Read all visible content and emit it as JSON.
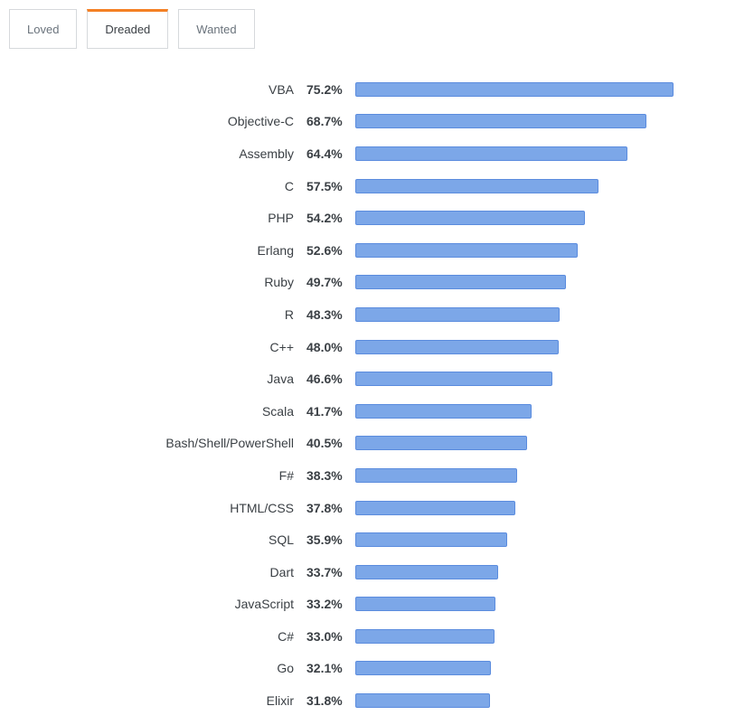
{
  "tabs": [
    {
      "label": "Loved",
      "active": false
    },
    {
      "label": "Dreaded",
      "active": true
    },
    {
      "label": "Wanted",
      "active": false
    }
  ],
  "accent_color": "#f48024",
  "bar_fill_color": "#7ca7e8",
  "bar_border_color": "#5b8cde",
  "chart_data": {
    "type": "bar",
    "orientation": "horizontal",
    "title": "Dreaded",
    "categories": [
      "VBA",
      "Objective-C",
      "Assembly",
      "C",
      "PHP",
      "Erlang",
      "Ruby",
      "R",
      "C++",
      "Java",
      "Scala",
      "Bash/Shell/PowerShell",
      "F#",
      "HTML/CSS",
      "SQL",
      "Dart",
      "JavaScript",
      "C#",
      "Go",
      "Elixir"
    ],
    "values": [
      75.2,
      68.7,
      64.4,
      57.5,
      54.2,
      52.6,
      49.7,
      48.3,
      48.0,
      46.6,
      41.7,
      40.5,
      38.3,
      37.8,
      35.9,
      33.7,
      33.2,
      33.0,
      32.1,
      31.8
    ],
    "value_labels": [
      "75.2%",
      "68.7%",
      "64.4%",
      "57.5%",
      "54.2%",
      "52.6%",
      "49.7%",
      "48.3%",
      "48.0%",
      "46.6%",
      "41.7%",
      "40.5%",
      "38.3%",
      "37.8%",
      "35.9%",
      "33.7%",
      "33.2%",
      "33.0%",
      "32.1%",
      "31.8%"
    ],
    "value_suffix": "%",
    "xlim": [
      0,
      80
    ],
    "grid": false,
    "legend": false
  }
}
